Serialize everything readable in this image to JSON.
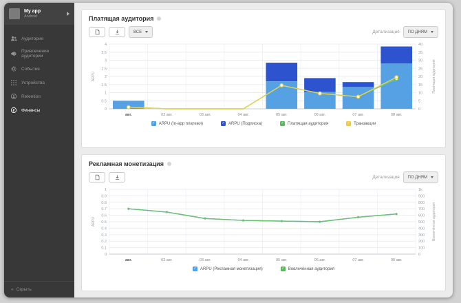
{
  "sidebar": {
    "app": {
      "name": "My app",
      "platform": "Android"
    },
    "items": [
      {
        "label": "Аудитория",
        "icon": "people-icon",
        "active": false
      },
      {
        "label": "Привлечение аудитории",
        "icon": "megaphone-icon",
        "active": false
      },
      {
        "label": "События",
        "icon": "gear-icon",
        "active": false
      },
      {
        "label": "Устройства",
        "icon": "grid-icon",
        "active": false
      },
      {
        "label": "Retention",
        "icon": "person-circle-icon",
        "active": false
      },
      {
        "label": "Финансы",
        "icon": "ruble-icon",
        "active": true
      }
    ],
    "collapse_label": "Скрыть"
  },
  "panels": [
    {
      "title": "Платящая аудитория",
      "toolbar": {
        "filter_value": "ВСЕ",
        "detail_label": "Детализация",
        "detail_value": "ПО ДНЯМ"
      }
    },
    {
      "title": "Рекламная монетизация",
      "toolbar": {
        "detail_label": "Детализация",
        "detail_value": "ПО ДНЯМ"
      }
    }
  ],
  "colors": {
    "bar_light_blue": "#55a1e3",
    "bar_dark_blue": "#2d53cf",
    "line_green": "#72c472",
    "line_yellow": "#e8d24a",
    "legend_light_blue": "#4da2e8",
    "legend_dark_blue": "#2d53cf",
    "legend_green": "#5cb85c",
    "legend_yellow": "#f2ca3d"
  },
  "chart_data": [
    {
      "type": "bar+line",
      "title": "Платящая аудитория",
      "categories": [
        "авг.",
        "02 авг.",
        "03 авг.",
        "04 авг.",
        "05 авг.",
        "06 авг.",
        "07 авг.",
        "08 авг."
      ],
      "bar_series": [
        {
          "name": "ARPU (In-app платежи)",
          "color": "#55a1e3",
          "axis": "left",
          "values": [
            0.5,
            0,
            0,
            0,
            1.7,
            1.05,
            1.35,
            2.8
          ]
        },
        {
          "name": "ARPU (Подписка)",
          "color": "#2d53cf",
          "axis": "left",
          "values": [
            0,
            0,
            0,
            0,
            1.15,
            0.85,
            0.3,
            1.05
          ]
        }
      ],
      "line_series": [
        {
          "name": "Платящая аудитория",
          "color": "#72c472",
          "axis": "right",
          "marker": "hollow",
          "values": [
            1,
            0,
            0,
            0,
            14.5,
            9.5,
            7.5,
            18.5
          ]
        },
        {
          "name": "Транзакции",
          "color": "#e8d24a",
          "axis": "right",
          "marker": "hollow",
          "values": [
            1,
            0,
            0,
            0,
            14.5,
            9.5,
            7.5,
            19.5
          ]
        }
      ],
      "axis_left": {
        "label": "ARPU",
        "min": 0,
        "max": 4,
        "step": 0.5
      },
      "axis_right": {
        "label": "Платящая аудитория",
        "min": 0,
        "max": 40,
        "step": 5,
        "kformat": false
      },
      "legend": [
        {
          "label": "ARPU (In-app платежи)",
          "color": "#4da2e8"
        },
        {
          "label": "ARPU (Подписка)",
          "color": "#2d53cf"
        },
        {
          "label": "Платящая аудитория",
          "color": "#5cb85c"
        },
        {
          "label": "Транзакции",
          "color": "#f2ca3d"
        }
      ]
    },
    {
      "type": "line",
      "title": "Рекламная монетизация",
      "categories": [
        "авг.",
        "02 авг.",
        "03 авг.",
        "04 авг.",
        "05 авг.",
        "06 авг.",
        "07 авг.",
        "08 авг."
      ],
      "line_series": [
        {
          "name": "ARPU (Рекламная монетизация)",
          "color": "#4da2e8",
          "axis": "left",
          "marker": "dot",
          "values": [
            0.7,
            0.65,
            0.55,
            0.52,
            0.51,
            0.5,
            0.57,
            0.62
          ]
        },
        {
          "name": "Вовлечённая аудитория",
          "color": "#6fc06f",
          "axis": "right",
          "marker": "dot",
          "values": [
            700,
            650,
            550,
            520,
            510,
            500,
            570,
            620
          ]
        }
      ],
      "axis_left": {
        "label": "ARPU",
        "min": 0,
        "max": 1,
        "step": 0.1
      },
      "axis_right": {
        "label": "Вовлечённая аудитория",
        "min": 0,
        "max": 1000,
        "step": 100,
        "kformat": true
      },
      "legend": [
        {
          "label": "ARPU (Рекламная монетизация)",
          "color": "#4da2e8"
        },
        {
          "label": "Вовлечённая аудитория",
          "color": "#5cb85c"
        }
      ]
    }
  ]
}
